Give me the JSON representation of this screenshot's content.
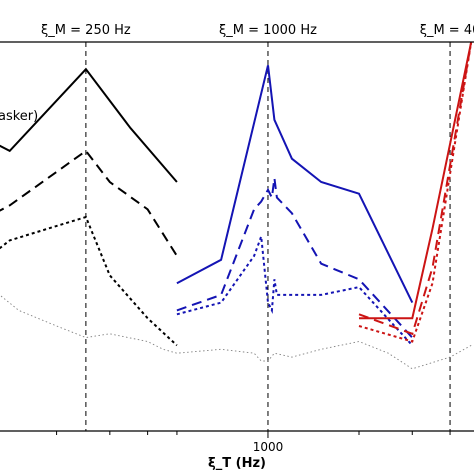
{
  "chart_data": {
    "type": "line",
    "xlabel": "ξ_T (Hz)",
    "x_scale": "log",
    "xlim": [
      130,
      4800
    ],
    "ylim": [
      0,
      100
    ],
    "x_ticks": [
      {
        "value": 1000,
        "label": "1000"
      }
    ],
    "minor_x_ticks": [
      200,
      300,
      400,
      500,
      2000,
      3000,
      4000
    ],
    "grid": false,
    "masker_markers": [
      {
        "x": 250,
        "label": "ξ_M = 250 Hz"
      },
      {
        "x": 1000,
        "label": "ξ_M = 1000 Hz"
      },
      {
        "x": 4000,
        "label": "ξ_M = 40"
      }
    ],
    "annotation": "asker)",
    "series": [
      {
        "color": "#000000",
        "style": "solid",
        "x": [
          125,
          140,
          250,
          350,
          500
        ],
        "y": [
          74,
          72,
          93,
          78,
          64
        ]
      },
      {
        "color": "#000000",
        "style": "dash",
        "x": [
          125,
          140,
          250,
          300,
          400,
          500
        ],
        "y": [
          56,
          58,
          72,
          64,
          57,
          45
        ]
      },
      {
        "color": "#000000",
        "style": "dot",
        "x": [
          125,
          140,
          250,
          300,
          400,
          500
        ],
        "y": [
          46,
          49,
          55,
          40,
          29,
          22
        ]
      },
      {
        "color": "#808080",
        "style": "thin-dot",
        "x": [
          125,
          150,
          200,
          250,
          300,
          400,
          450,
          500,
          700,
          900,
          950,
          1000,
          1050,
          1200,
          1500,
          2000,
          2500,
          3000,
          4000,
          4700
        ],
        "y": [
          36,
          31,
          27,
          24,
          25,
          23,
          21,
          20,
          21,
          20,
          18,
          18,
          20,
          19,
          21,
          23,
          20,
          16,
          19,
          22
        ]
      },
      {
        "color": "#1414b4",
        "style": "solid",
        "x": [
          500,
          700,
          1000,
          1050,
          1200,
          1500,
          2000,
          3000
        ],
        "y": [
          38,
          44,
          94,
          80,
          70,
          64,
          61,
          33
        ]
      },
      {
        "color": "#1414b4",
        "style": "dash",
        "x": [
          500,
          700,
          900,
          950,
          1000,
          1030,
          1050,
          1070,
          1200,
          1500,
          2000,
          3000
        ],
        "y": [
          31,
          35,
          57,
          59,
          62,
          60,
          65,
          60,
          56,
          43,
          39,
          24
        ]
      },
      {
        "color": "#1414b4",
        "style": "dot",
        "x": [
          500,
          700,
          900,
          950,
          1000,
          1030,
          1050,
          1070,
          1200,
          1500,
          2000,
          3000
        ],
        "y": [
          30,
          33,
          45,
          50,
          33,
          31,
          39,
          35,
          35,
          35,
          37,
          22
        ]
      },
      {
        "color": "#cc1414",
        "style": "solid",
        "x": [
          2000,
          3000,
          3500,
          4700
        ],
        "y": [
          29,
          29,
          52,
          100
        ]
      },
      {
        "color": "#cc1414",
        "style": "dash",
        "x": [
          2000,
          3000,
          3500,
          4700
        ],
        "y": [
          30,
          25,
          42,
          100
        ]
      },
      {
        "color": "#cc1414",
        "style": "dot",
        "x": [
          2000,
          3000,
          3500,
          4700
        ],
        "y": [
          27,
          23,
          38,
          100
        ]
      }
    ]
  }
}
